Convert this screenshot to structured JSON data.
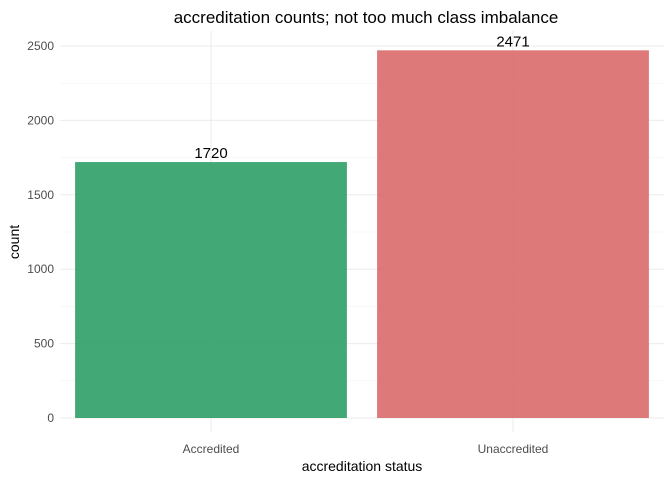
{
  "chart_data": {
    "type": "bar",
    "title": "accreditation counts; not too much class imbalance",
    "xlabel": "accreditation status",
    "ylabel": "count",
    "categories": [
      "Accredited",
      "Unaccredited"
    ],
    "values": [
      1720,
      2471
    ],
    "data_labels": [
      "1720",
      "2471"
    ],
    "bar_colors": [
      "#2e9e67",
      "#d96a6a"
    ],
    "ylim": [
      0,
      2600
    ],
    "yticks": [
      0,
      500,
      1000,
      1500,
      2000,
      2500
    ],
    "ytick_labels": [
      "0",
      "500",
      "1000",
      "1500",
      "2000",
      "2500"
    ],
    "grid": true,
    "legend": "none"
  }
}
